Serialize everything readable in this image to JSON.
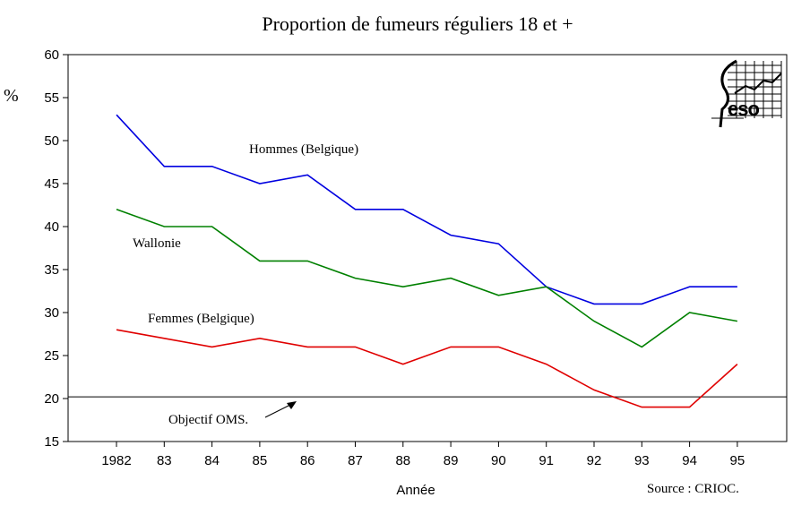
{
  "chart_data": {
    "type": "line",
    "title": "Proportion de fumeurs réguliers 18 et +",
    "xlabel": "Année",
    "ylabel": "%",
    "categories": [
      "1982",
      "83",
      "84",
      "85",
      "86",
      "87",
      "88",
      "89",
      "90",
      "91",
      "92",
      "93",
      "94",
      "95"
    ],
    "ylim": [
      15,
      60
    ],
    "yticks": [
      "15",
      "20",
      "25",
      "30",
      "35",
      "40",
      "45",
      "50",
      "55",
      "60"
    ],
    "grid": false,
    "series": [
      {
        "name": "Hommes (Belgique)",
        "color": "#0000e0",
        "values": [
          53,
          47,
          47,
          45,
          46,
          42,
          42,
          39,
          38,
          33,
          31,
          31,
          33,
          33
        ]
      },
      {
        "name": "Wallonie",
        "color": "#008000",
        "values": [
          42,
          40,
          40,
          36,
          36,
          34,
          33,
          34,
          32,
          33,
          29,
          26,
          30,
          29
        ]
      },
      {
        "name": "Femmes (Belgique)",
        "color": "#e00000",
        "values": [
          28,
          27,
          26,
          27,
          26,
          26,
          24,
          26,
          26,
          24,
          21,
          19,
          19,
          24
        ]
      }
    ],
    "reference_line": {
      "value": 20.2,
      "label": "Objectif OMS."
    },
    "source": "Source : CRIOC.",
    "logo_text": "CESO"
  }
}
